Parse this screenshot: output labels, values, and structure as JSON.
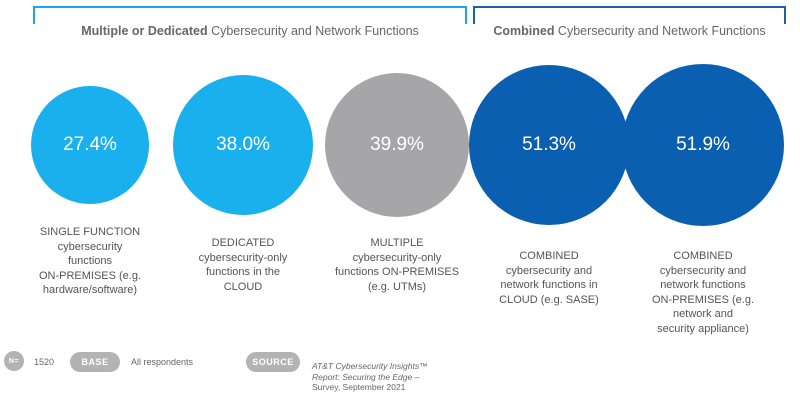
{
  "groups": {
    "left": {
      "bold": "Multiple or Dedicated",
      "rest": " Cybersecurity and Network Functions"
    },
    "right": {
      "bold": "Combined",
      "rest": " Cybersecurity and Network Functions"
    }
  },
  "chart_data": {
    "type": "bubble",
    "items": [
      {
        "value_label": "27.4%",
        "value": 27.4,
        "label": "SINGLE FUNCTION\ncybersecurity\nfunctions\nON-PREMISES (e.g.\nhardware/software)",
        "color": "#1ab0ee"
      },
      {
        "value_label": "38.0%",
        "value": 38.0,
        "label": "DEDICATED\ncybersecurity-only\nfunctions in the\nCLOUD",
        "color": "#1ab0ee"
      },
      {
        "value_label": "39.9%",
        "value": 39.9,
        "label": "MULTIPLE\ncybersecurity-only\nfunctions ON-PREMISES\n(e.g. UTMs)",
        "color": "#a6a6a8"
      },
      {
        "value_label": "51.3%",
        "value": 51.3,
        "label": "COMBINED\ncybersecurity and\nnetwork functions in\nCLOUD (e.g. SASE)",
        "color": "#0a5fb1"
      },
      {
        "value_label": "51.9%",
        "value": 51.9,
        "label": "COMBINED\ncybersecurity and\nnetwork functions\nON-PREMISES (e.g.\nnetwork and\nsecurity appliance)",
        "color": "#0a5fb1"
      }
    ]
  },
  "footer": {
    "n_badge": "N=",
    "n_value": "1520",
    "base_badge": "BASE",
    "base_value": "All respondents",
    "source_badge": "SOURCE",
    "source_line1": "AT&T Cybersecurity Insights™",
    "source_line2": "Report: Securing the Edge –",
    "source_line3": "Survey, September 2021"
  }
}
